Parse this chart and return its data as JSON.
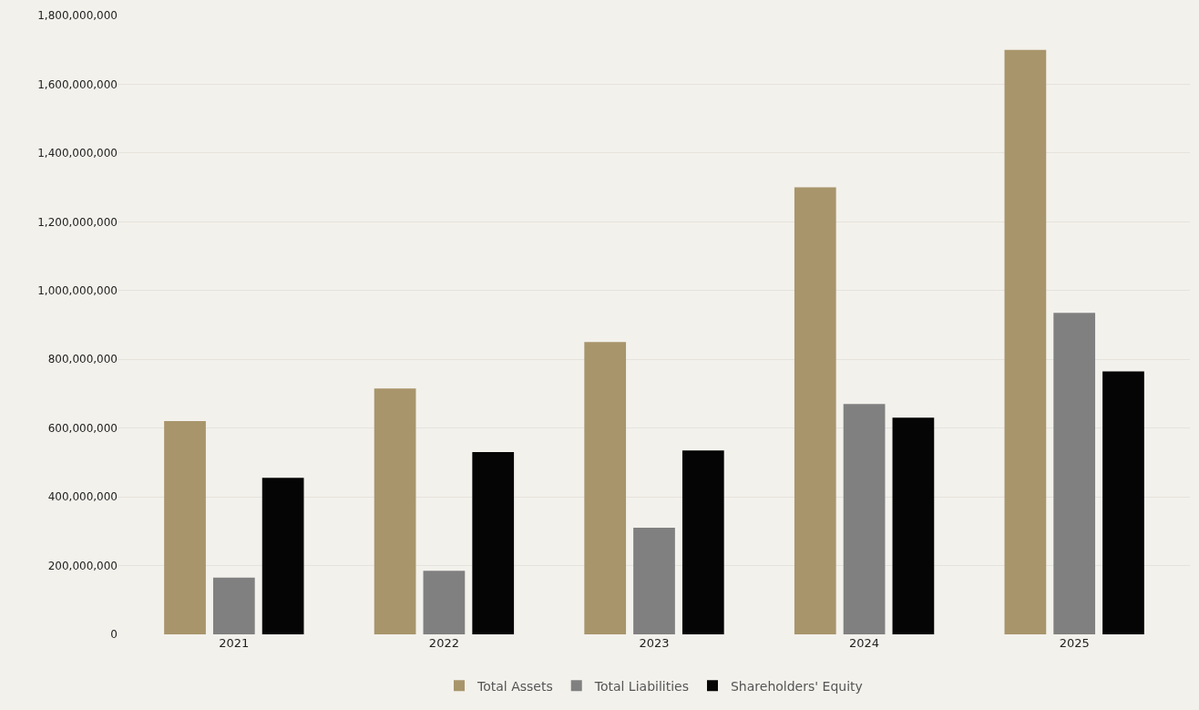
{
  "chart_data": {
    "type": "bar",
    "categories": [
      "2021",
      "2022",
      "2023",
      "2024",
      "2025"
    ],
    "series": [
      {
        "name": "Total Assets",
        "color": "#a8956b",
        "values": [
          620000000,
          715000000,
          850000000,
          1300000000,
          1700000000
        ]
      },
      {
        "name": "Total Liabilities",
        "color": "#808080",
        "values": [
          165000000,
          185000000,
          310000000,
          670000000,
          935000000
        ]
      },
      {
        "name": "Shareholders' Equity",
        "color": "#050505",
        "values": [
          455000000,
          530000000,
          535000000,
          630000000,
          765000000
        ]
      }
    ],
    "ylim": [
      0,
      1800000000
    ],
    "yticks": [
      0,
      {
        "value": 200000000,
        "label": "200,000,000"
      },
      {
        "value": 400000000,
        "label": "400,000,000"
      },
      {
        "value": 600000000,
        "label": "600,000,000"
      },
      {
        "value": 800000000,
        "label": "800,000,000"
      },
      {
        "value": 1000000000,
        "label": "1,000,000,000"
      },
      {
        "value": 1200000000,
        "label": "1,200,000,000"
      },
      {
        "value": 1400000000,
        "label": "1,400,000,000"
      },
      {
        "value": 1600000000,
        "label": "1,600,000,000"
      },
      {
        "value": 1800000000,
        "label": "1,800,000,000"
      }
    ],
    "grid": "y",
    "legend": "bottom"
  }
}
